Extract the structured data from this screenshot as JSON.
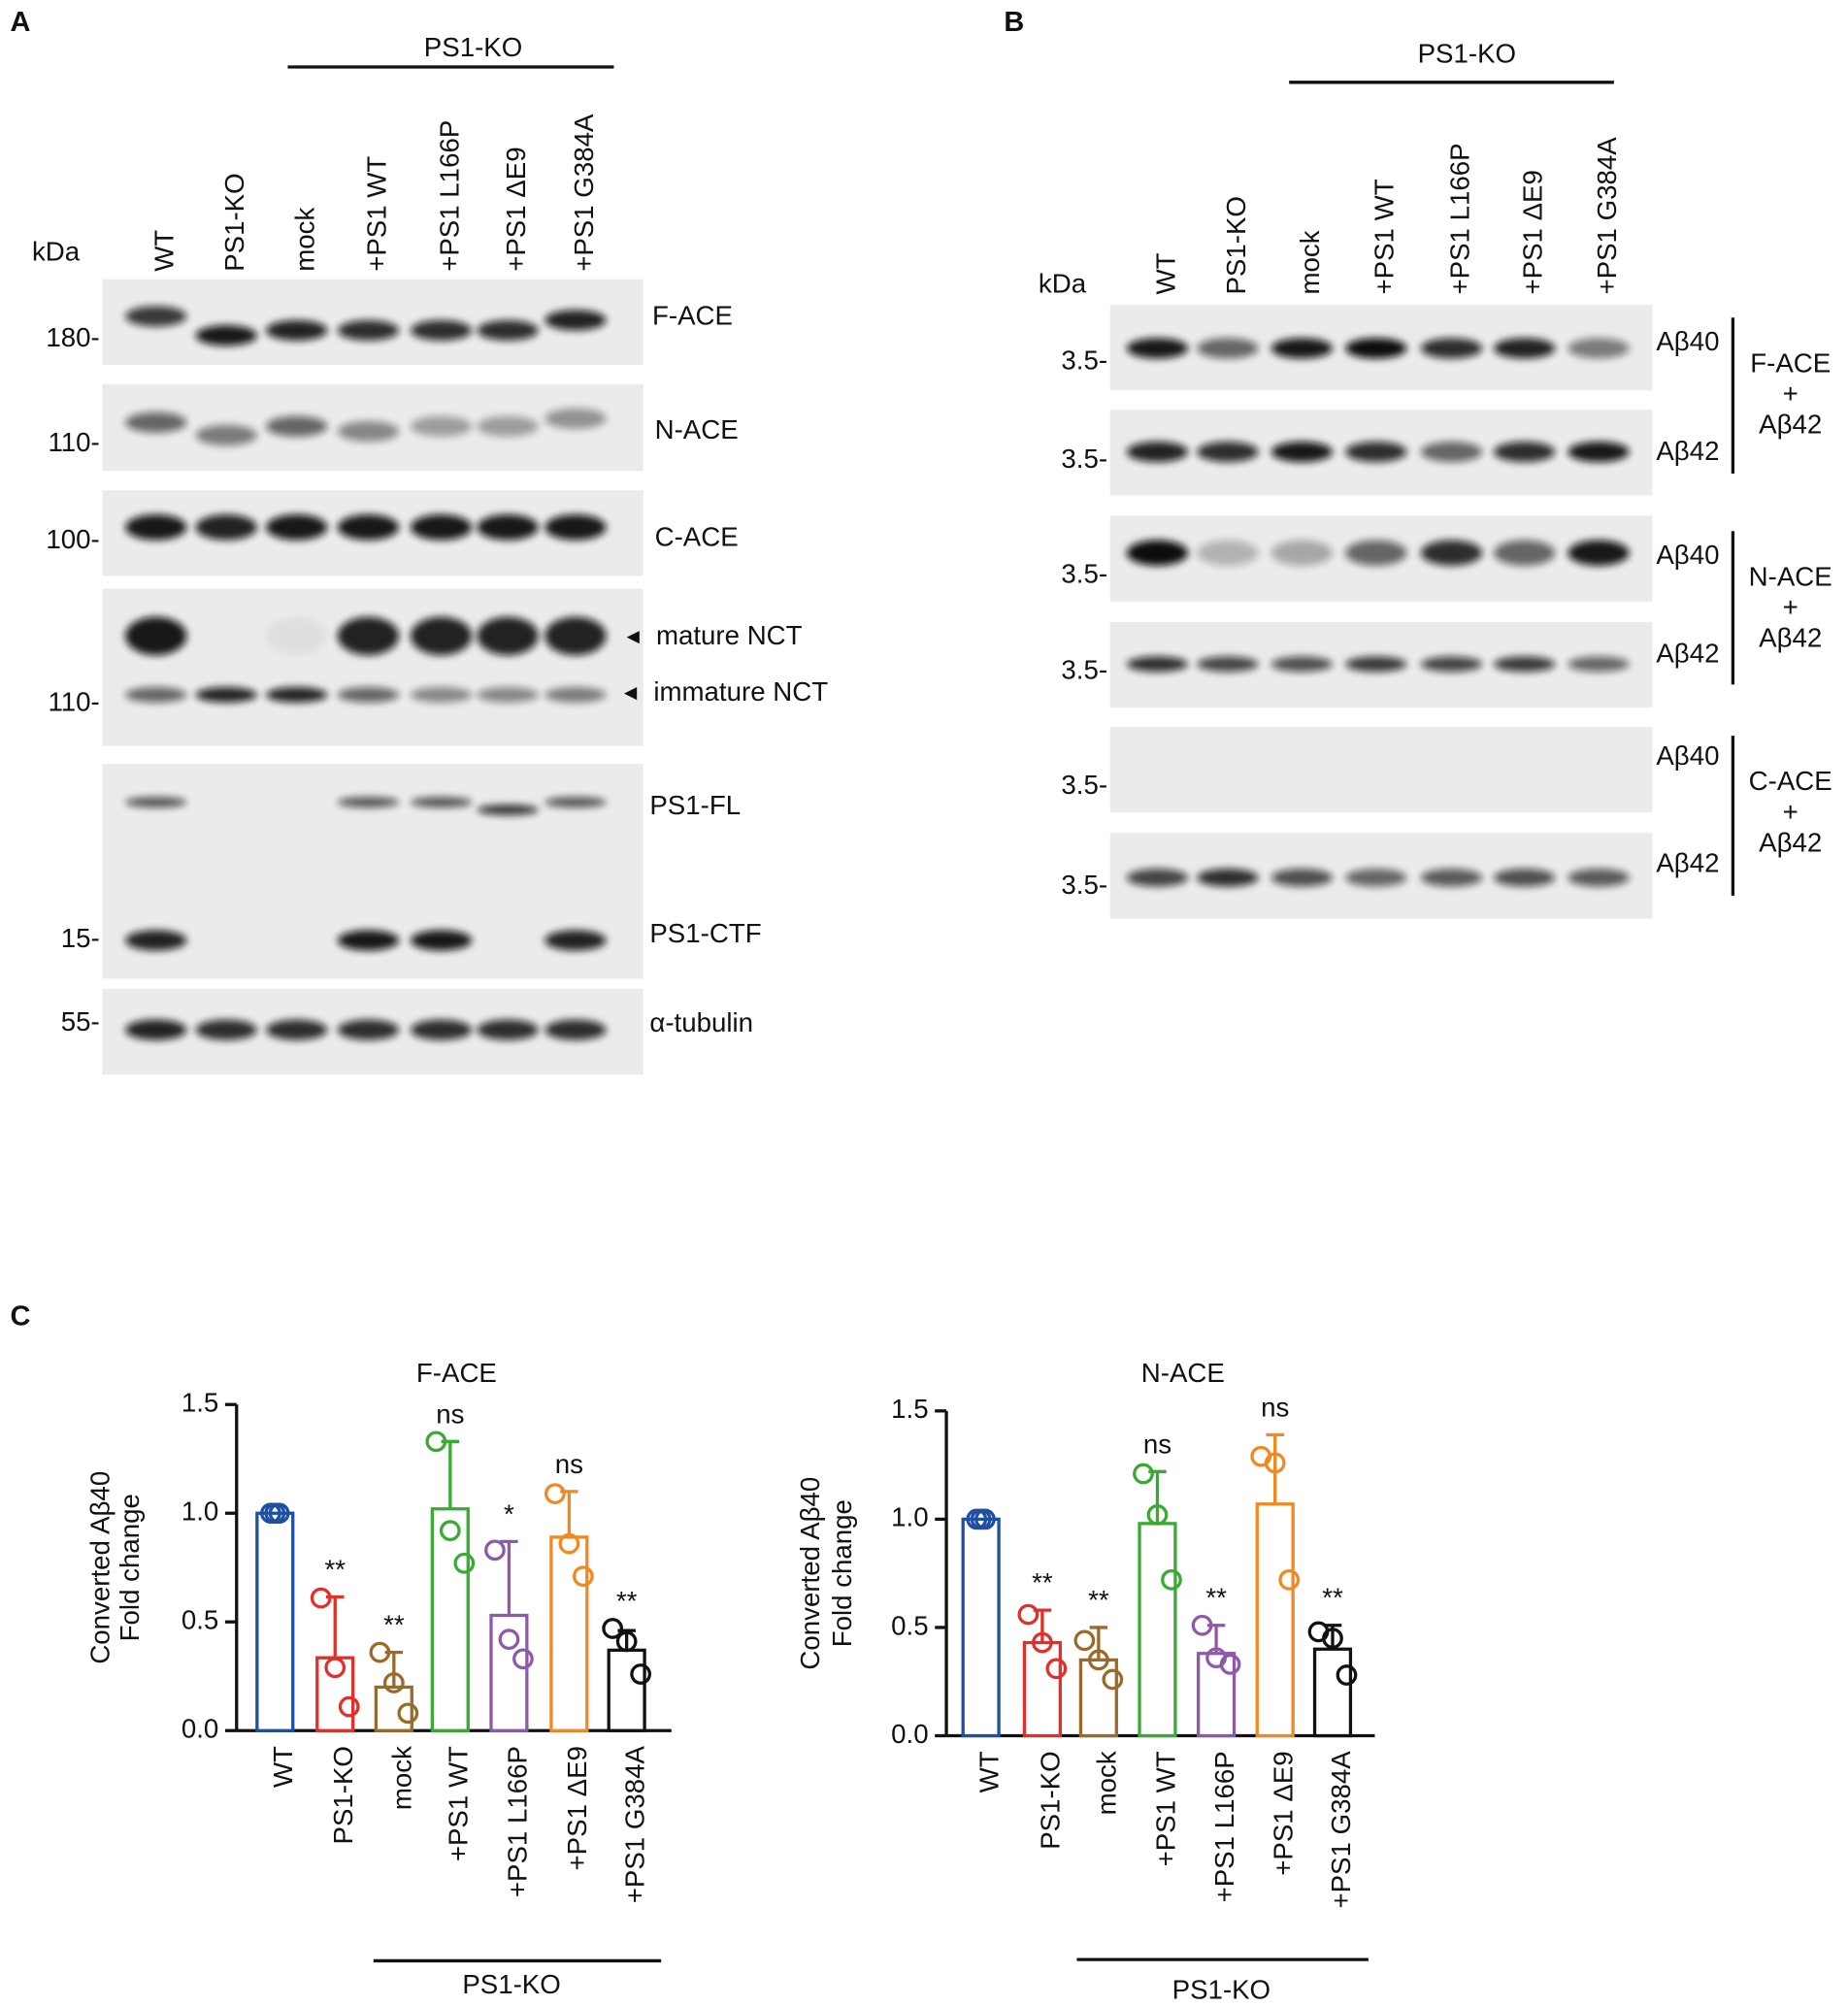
{
  "panel_labels": [
    "A",
    "B",
    "C"
  ],
  "blot_a": {
    "group_label": "PS1-KO",
    "kda_label": "kDa",
    "lanes": [
      "WT",
      "PS1-KO",
      "mock",
      "+PS1 WT",
      "+PS1 L166P",
      "+PS1 ΔE9",
      "+PS1 G384A"
    ],
    "markers": [
      "180-",
      "110-",
      "100-",
      "110-",
      "15-",
      "55-"
    ],
    "bands": [
      "F-ACE",
      "N-ACE",
      "C-ACE",
      "mature NCT",
      "immature NCT",
      "PS1-FL",
      "PS1-CTF",
      "α-tubulin"
    ]
  },
  "blot_b": {
    "group_label": "PS1-KO",
    "kda_label": "kDa",
    "lanes": [
      "WT",
      "PS1-KO",
      "mock",
      "+PS1 WT",
      "+PS1 L166P",
      "+PS1 ΔE9",
      "+PS1 G384A"
    ],
    "markers": [
      "3.5-",
      "3.5-",
      "3.5-",
      "3.5-",
      "3.5-",
      "3.5-"
    ],
    "peptides": [
      "Aβ40",
      "Aβ42",
      "Aβ40",
      "Aβ42",
      "Aβ40",
      "Aβ42"
    ],
    "groups": [
      [
        "F-ACE",
        "+",
        "Aβ42"
      ],
      [
        "N-ACE",
        "+",
        "Aβ42"
      ],
      [
        "C-ACE",
        "+",
        "Aβ42"
      ]
    ]
  },
  "chart_data": [
    {
      "type": "bar",
      "title": "F-ACE",
      "y_label": [
        "Converted Aβ40",
        "Fold change"
      ],
      "categories": [
        "WT",
        "PS1-KO",
        "mock",
        "+PS1 WT",
        "+PS1 L166P",
        "+PS1 ΔE9",
        "+PS1 G384A"
      ],
      "colors": [
        "#1f4fa0",
        "#e0302a",
        "#9a6a2a",
        "#3aaa35",
        "#8e5aa8",
        "#ef8a22",
        "#111111"
      ],
      "values": [
        1.0,
        0.335,
        0.2,
        1.02,
        0.53,
        0.89,
        0.37
      ],
      "errors": [
        0,
        0.28,
        0.16,
        0.31,
        0.34,
        0.21,
        0.09
      ],
      "points": [
        [
          1,
          1,
          1
        ],
        [
          0.61,
          0.29,
          0.11
        ],
        [
          0.36,
          0.22,
          0.08
        ],
        [
          1.33,
          0.92,
          0.77
        ],
        [
          0.83,
          0.42,
          0.33
        ],
        [
          1.09,
          0.86,
          0.71
        ],
        [
          0.47,
          0.41,
          0.26
        ]
      ],
      "annotations": [
        null,
        "**",
        "**",
        "ns",
        "*",
        "ns",
        "**"
      ],
      "ylim": [
        0,
        1.5
      ],
      "yticks": [
        {
          "value": 0,
          "label": "0.0"
        },
        0.5,
        {
          "value": 1,
          "label": "1.0"
        },
        1.5
      ],
      "group_label": "PS1-KO"
    },
    {
      "type": "bar",
      "title": "N-ACE",
      "y_label": [
        "Converted Aβ40",
        "Fold change"
      ],
      "categories": [
        "WT",
        "PS1-KO",
        "mock",
        "+PS1 WT",
        "+PS1 L166P",
        "+PS1 ΔE9",
        "+PS1 G384A"
      ],
      "colors": [
        "#1f4fa0",
        "#e0302a",
        "#9a6a2a",
        "#3aaa35",
        "#8e5aa8",
        "#ef8a22",
        "#111111"
      ],
      "values": [
        1.0,
        0.43,
        0.35,
        0.98,
        0.38,
        1.07,
        0.4
      ],
      "errors": [
        0,
        0.15,
        0.15,
        0.24,
        0.13,
        0.32,
        0.11
      ],
      "points": [
        [
          1,
          1,
          1
        ],
        [
          0.56,
          0.43,
          0.31
        ],
        [
          0.44,
          0.35,
          0.26
        ],
        [
          1.21,
          1.02,
          0.72
        ],
        [
          0.51,
          0.36,
          0.33
        ],
        [
          1.29,
          1.26,
          0.72
        ],
        [
          0.48,
          0.45,
          0.28
        ]
      ],
      "annotations": [
        null,
        "**",
        "**",
        "ns",
        "**",
        "ns",
        "**"
      ],
      "ylim": [
        0,
        1.5
      ],
      "yticks": [
        {
          "value": 0,
          "label": "0.0"
        },
        0.5,
        {
          "value": 1,
          "label": "1.0"
        },
        1.5
      ],
      "group_label": "PS1-KO"
    }
  ]
}
